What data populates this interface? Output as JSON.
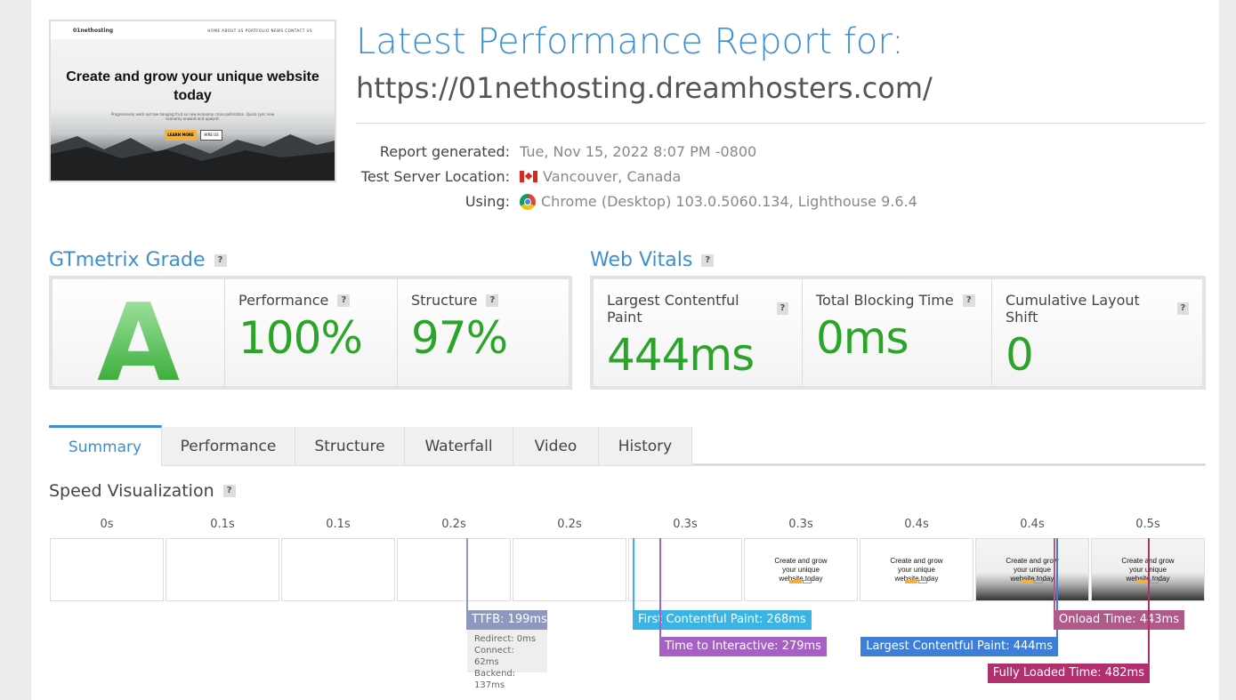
{
  "thumbnail": {
    "logo": "01nethosting",
    "nav": "HOME  ABOUT US  PORTFOLIO  NEWS  CONTACT US",
    "headline": "Create and grow your unique website today",
    "sub": "Progressively work out low hanging fruit so new economy cross-pollination. Quick sync new economy onward and upward.",
    "btn1": "LEARN MORE",
    "btn2": "HIRE US"
  },
  "header": {
    "title": "Latest Performance Report for:",
    "url": "https://01nethosting.dreamhosters.com/"
  },
  "info": [
    {
      "label": "Report generated:",
      "value": "Tue, Nov 15, 2022 8:07 PM -0800",
      "icon": ""
    },
    {
      "label": "Test Server Location:",
      "value": "Vancouver, Canada",
      "icon": "canada-flag-icon"
    },
    {
      "label": "Using:",
      "value": "Chrome (Desktop) 103.0.5060.134, Lighthouse 9.6.4",
      "icon": "chrome-icon"
    }
  ],
  "grade": {
    "heading": "GTmetrix Grade",
    "help": "?",
    "letter": "A",
    "performance_label": "Performance",
    "performance": "100%",
    "structure_label": "Structure",
    "structure": "97%"
  },
  "vitals": {
    "heading": "Web Vitals",
    "help": "?",
    "lcp_label": "Largest Contentful Paint",
    "lcp": "444ms",
    "tbt_label": "Total Blocking Time",
    "tbt": "0ms",
    "cls_label": "Cumulative Layout Shift",
    "cls": "0"
  },
  "tabs": [
    "Summary",
    "Performance",
    "Structure",
    "Waterfall",
    "Video",
    "History"
  ],
  "active_tab": "Summary",
  "speed": {
    "heading": "Speed Visualization",
    "help": "?",
    "times": [
      "0s",
      "0.1s",
      "0.1s",
      "0.2s",
      "0.2s",
      "0.3s",
      "0.3s",
      "0.4s",
      "0.4s",
      "0.5s"
    ],
    "frame_text": "Create and grow your unique website today",
    "markers": {
      "ttfb": "TTFB: 199ms",
      "fcp": "First Contentful Paint: 268ms",
      "tti": "Time to Interactive: 279ms",
      "lcp": "Largest Contentful Paint: 444ms",
      "onload": "Onload Time: 443ms",
      "fully": "Fully Loaded Time: 482ms"
    },
    "ttfb_details": [
      "Redirect: 0ms",
      "Connect: 62ms",
      "Backend: 137ms"
    ]
  },
  "colors": {
    "accent": "#3d8fd1",
    "good": "#2aa52a",
    "ttfb": "#8e98bf",
    "fcp": "#39b4e4",
    "tti": "#a65fc3",
    "lcp": "#3d7fd8",
    "onload": "#b05a8a",
    "fully": "#b12f6d"
  }
}
